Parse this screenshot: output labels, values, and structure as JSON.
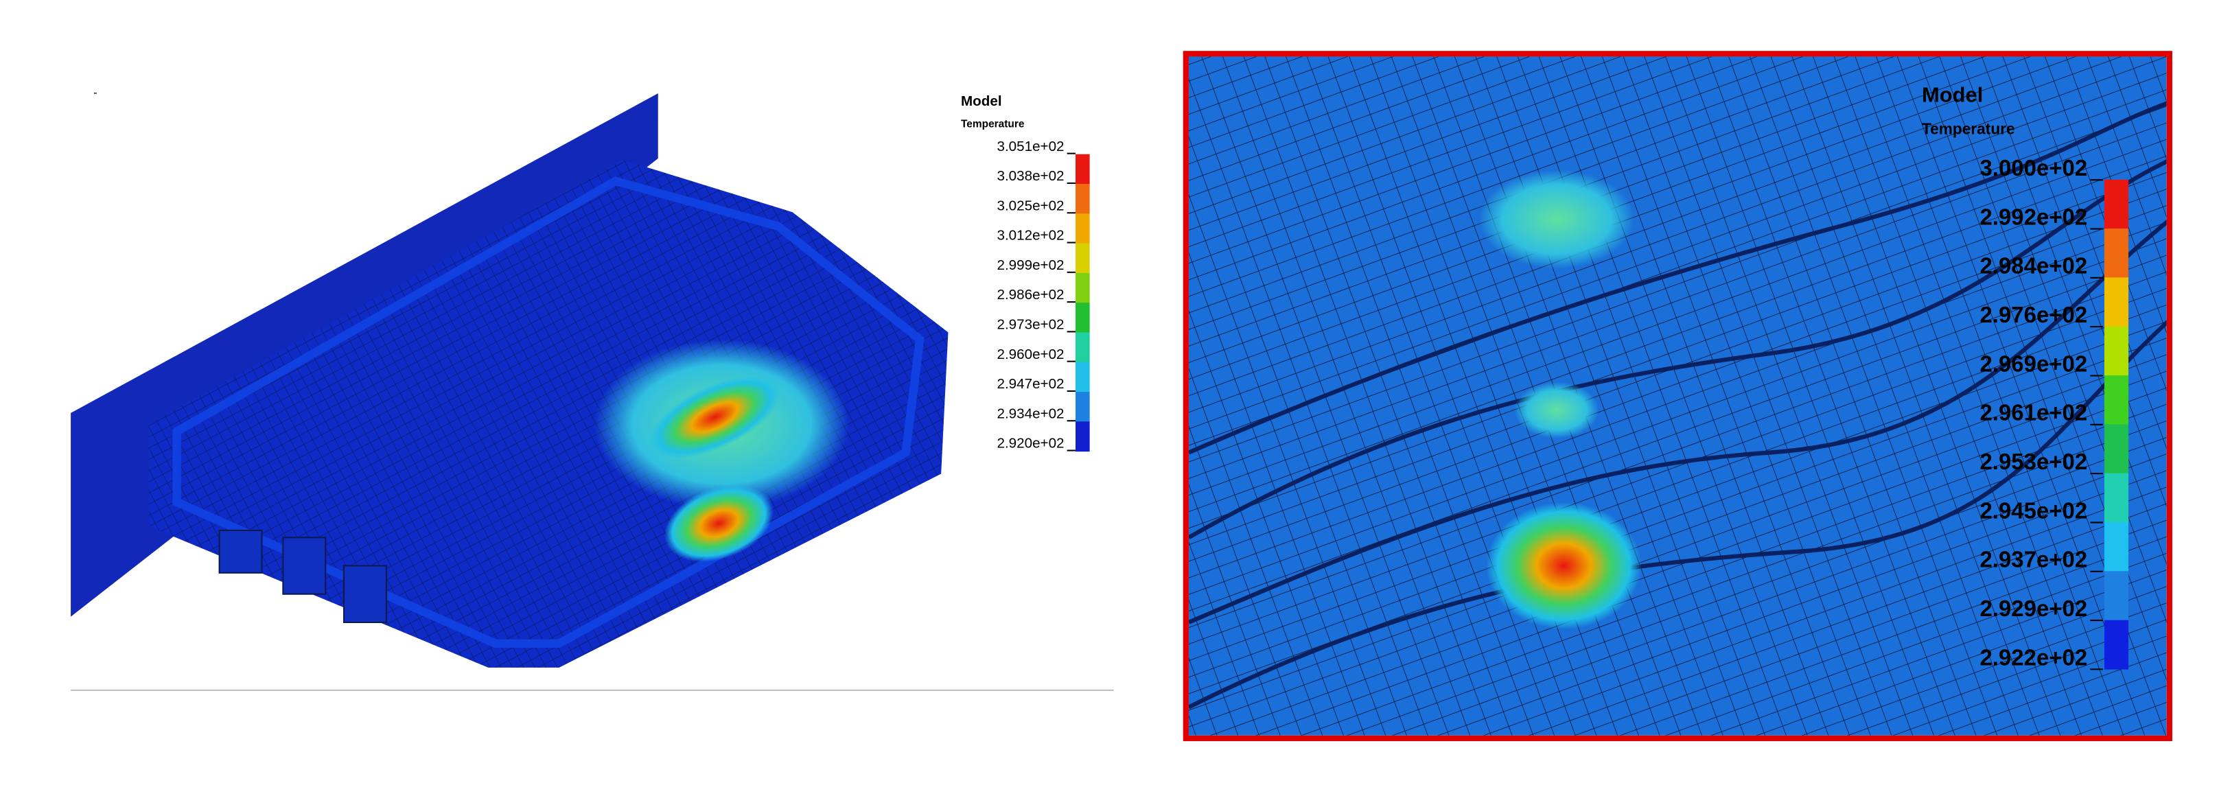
{
  "left_legend": {
    "title": "Model",
    "subtitle": "Temperature",
    "labels": [
      "3.051e+02",
      "3.038e+02",
      "3.025e+02",
      "3.012e+02",
      "2.999e+02",
      "2.986e+02",
      "2.973e+02",
      "2.960e+02",
      "2.947e+02",
      "2.934e+02",
      "2.920e+02"
    ],
    "colors": [
      "#e8170f",
      "#f06a10",
      "#f0a800",
      "#d8d000",
      "#80d010",
      "#20c030",
      "#20d0a0",
      "#20c0e8",
      "#1e80e0",
      "#1020d0"
    ]
  },
  "right_legend": {
    "title": "Model",
    "subtitle": "Temperature",
    "labels": [
      "3.000e+02",
      "2.992e+02",
      "2.984e+02",
      "2.976e+02",
      "2.969e+02",
      "2.961e+02",
      "2.953e+02",
      "2.945e+02",
      "2.937e+02",
      "2.929e+02",
      "2.922e+02"
    ],
    "colors": [
      "#e8170f",
      "#f06a10",
      "#f0c000",
      "#b0e000",
      "#40d020",
      "#20c050",
      "#20d0b0",
      "#20c0f0",
      "#1e80e0",
      "#1020e0"
    ]
  }
}
